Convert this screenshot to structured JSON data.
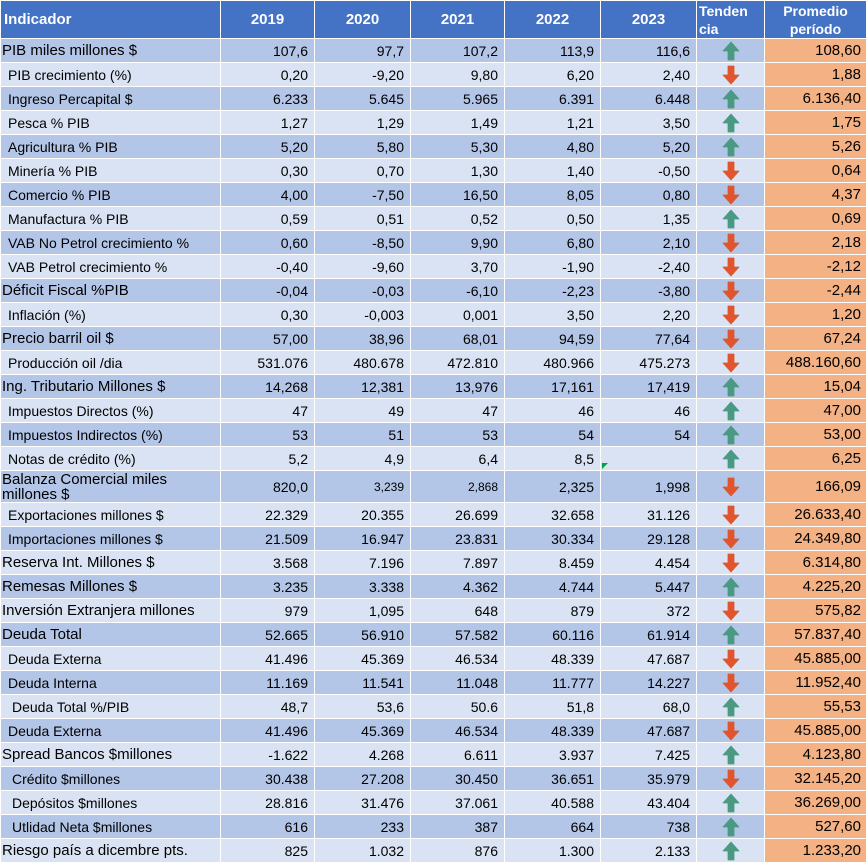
{
  "colors": {
    "header": "#4472c4",
    "row_dark": "#b4c6e7",
    "row_light": "#dae3f3",
    "average": "#f4b183",
    "up_arrow": "#4a9a83",
    "down_arrow": "#e0552d"
  },
  "header": {
    "indicator": "Indicador",
    "years": [
      "2019",
      "2020",
      "2021",
      "2022",
      "2023"
    ],
    "trend": "Tendencia",
    "trend_line1": "Tenden",
    "trend_line2": "cia",
    "average": "Promedio período",
    "average_line1": "Promedio",
    "average_line2": "período"
  },
  "rows": [
    {
      "label": "PIB miles millones $",
      "level": 0,
      "values": [
        "107,6",
        "97,7",
        "107,2",
        "113,9",
        "116,6"
      ],
      "trend": "up",
      "average": "108,60"
    },
    {
      "label": "PIB crecimiento  (%)",
      "level": 1,
      "values": [
        "0,20",
        "-9,20",
        "9,80",
        "6,20",
        "2,40"
      ],
      "trend": "down",
      "average": "1,88"
    },
    {
      "label": "Ingreso Percapital $",
      "level": 1,
      "values": [
        "6.233",
        "5.645",
        "5.965",
        "6.391",
        "6.448"
      ],
      "trend": "up",
      "average": "6.136,40"
    },
    {
      "label": "Pesca % PIB",
      "level": 1,
      "values": [
        "1,27",
        "1,29",
        "1,49",
        "1,21",
        "3,50"
      ],
      "trend": "up",
      "average": "1,75"
    },
    {
      "label": "Agricultura % PIB",
      "level": 1,
      "values": [
        "5,20",
        "5,80",
        "5,30",
        "4,80",
        "5,20"
      ],
      "trend": "up",
      "average": "5,26"
    },
    {
      "label": "Minería % PIB",
      "level": 1,
      "values": [
        "0,30",
        "0,70",
        "1,30",
        "1,40",
        "-0,50"
      ],
      "trend": "down",
      "average": "0,64"
    },
    {
      "label": "Comercio % PIB",
      "level": 1,
      "values": [
        "4,00",
        "-7,50",
        "16,50",
        "8,05",
        "0,80"
      ],
      "trend": "down",
      "average": "4,37"
    },
    {
      "label": "Manufactura % PIB",
      "level": 1,
      "values": [
        "0,59",
        "0,51",
        "0,52",
        "0,50",
        "1,35"
      ],
      "trend": "up",
      "average": "0,69"
    },
    {
      "label": "VAB No Petrol crecimiento  %",
      "level": 1,
      "values": [
        "0,60",
        "-8,50",
        "9,90",
        "6,80",
        "2,10"
      ],
      "trend": "down",
      "average": "2,18"
    },
    {
      "label": "VAB Petrol crecimiento %",
      "level": 1,
      "values": [
        "-0,40",
        "-9,60",
        "3,70",
        "-1,90",
        "-2,40"
      ],
      "trend": "down",
      "average": "-2,12"
    },
    {
      "label": "Déficit Fiscal %PIB",
      "level": 0,
      "values": [
        "-0,04",
        "-0,03",
        "-6,10",
        "-2,23",
        "-3,80"
      ],
      "trend": "down",
      "average": "-2,44"
    },
    {
      "label": "Inflación  (%)",
      "level": 1,
      "values": [
        "0,30",
        "-0,003",
        "0,001",
        "3,50",
        "2,20"
      ],
      "trend": "down",
      "average": "1,20"
    },
    {
      "label": "Precio barril oil $",
      "level": 0,
      "values": [
        "57,00",
        "38,96",
        "68,01",
        "94,59",
        "77,64"
      ],
      "trend": "down",
      "average": "67,24"
    },
    {
      "label": "Producción oil /dia",
      "level": 1,
      "values": [
        "531.076",
        "480.678",
        "472.810",
        "480.966",
        "475.273"
      ],
      "trend": "down",
      "average": "488.160,60"
    },
    {
      "label": "Ing. Tributario Millones $",
      "level": 0,
      "values": [
        "14,268",
        "12,381",
        "13,976",
        "17,161",
        "17,419"
      ],
      "trend": "up",
      "average": "15,04"
    },
    {
      "label": "Impuestos Directos  (%)",
      "level": 1,
      "values": [
        "47",
        "49",
        "47",
        "46",
        "46"
      ],
      "trend": "up",
      "average": "47,00"
    },
    {
      "label": "Impuestos Indirectos (%)",
      "level": 1,
      "values": [
        "53",
        "51",
        "53",
        "54",
        "54"
      ],
      "trend": "up",
      "average": "53,00"
    },
    {
      "label": "Notas de crédito (%)",
      "level": 1,
      "values": [
        "5,2",
        "4,9",
        "6,4",
        "8,5",
        ""
      ],
      "trend": "up",
      "average": "6,25",
      "flag": true
    },
    {
      "label": "Balanza Comercial miles millones $",
      "level": 0,
      "values": [
        "820,0",
        "3,239",
        "2,868",
        "2,325",
        "1,998"
      ],
      "trend": "down",
      "average": "166,09",
      "tall": true
    },
    {
      "label": "Exportaciones millones $",
      "level": 1,
      "values": [
        "22.329",
        "20.355",
        "26.699",
        "32.658",
        "31.126"
      ],
      "trend": "down",
      "average": "26.633,40"
    },
    {
      "label": "Importaciones millones $",
      "level": 1,
      "values": [
        "21.509",
        "16.947",
        "23.831",
        "30.334",
        "29.128"
      ],
      "trend": "down",
      "average": "24.349,80"
    },
    {
      "label": "Reserva Int. Millones $",
      "level": 0,
      "values": [
        "3.568",
        "7.196",
        "7.897",
        "8.459",
        "4.454"
      ],
      "trend": "down",
      "average": "6.314,80"
    },
    {
      "label": "Remesas Millones $",
      "level": 0,
      "values": [
        "3.235",
        "3.338",
        "4.362",
        "4.744",
        "5.447"
      ],
      "trend": "up",
      "average": "4.225,20"
    },
    {
      "label": "Inversión Extranjera millones",
      "level": 0,
      "values": [
        "979",
        "1,095",
        "648",
        "879",
        "372"
      ],
      "trend": "down",
      "average": "575,82"
    },
    {
      "label": "Deuda Total",
      "level": 0,
      "values": [
        "52.665",
        "56.910",
        "57.582",
        "60.116",
        "61.914"
      ],
      "trend": "up",
      "average": "57.837,40"
    },
    {
      "label": "Deuda Externa",
      "level": 1,
      "values": [
        "41.496",
        "45.369",
        "46.534",
        "48.339",
        "47.687"
      ],
      "trend": "down",
      "average": "45.885,00"
    },
    {
      "label": "Deuda Interna",
      "level": 1,
      "values": [
        "11.169",
        "11.541",
        "11.048",
        "11.777",
        "14.227"
      ],
      "trend": "down",
      "average": "11.952,40"
    },
    {
      "label": "Deuda Total %/PIB",
      "level": 2,
      "values": [
        "48,7",
        "53,6",
        "50.6",
        "51,8",
        "68,0"
      ],
      "trend": "up",
      "average": "55,53"
    },
    {
      "label": "Deuda Externa",
      "level": 1,
      "values": [
        "41.496",
        "45.369",
        "46.534",
        "48.339",
        "47.687"
      ],
      "trend": "down",
      "average": "45.885,00"
    },
    {
      "label": "Spread Bancos  $millones",
      "level": 0,
      "values": [
        "-1.622",
        "4.268",
        "6.611",
        "3.937",
        "7.425"
      ],
      "trend": "up",
      "average": "4.123,80"
    },
    {
      "label": "Crédito $millones",
      "level": 2,
      "values": [
        "30.438",
        "27.208",
        "30.450",
        "36.651",
        "35.979"
      ],
      "trend": "down",
      "average": "32.145,20"
    },
    {
      "label": "Depósitos  $millones",
      "level": 2,
      "values": [
        "28.816",
        "31.476",
        "37.061",
        "40.588",
        "43.404"
      ],
      "trend": "up",
      "average": "36.269,00"
    },
    {
      "label": "Utlidad Neta  $millones",
      "level": 2,
      "values": [
        "616",
        "233",
        "387",
        "664",
        "738"
      ],
      "trend": "up",
      "average": "527,60"
    },
    {
      "label": "Riesgo país a dicembre pts.",
      "level": 0,
      "values": [
        "825",
        "1.032",
        "876",
        "1.300",
        "2.133"
      ],
      "trend": "up",
      "average": "1.233,20"
    }
  ]
}
